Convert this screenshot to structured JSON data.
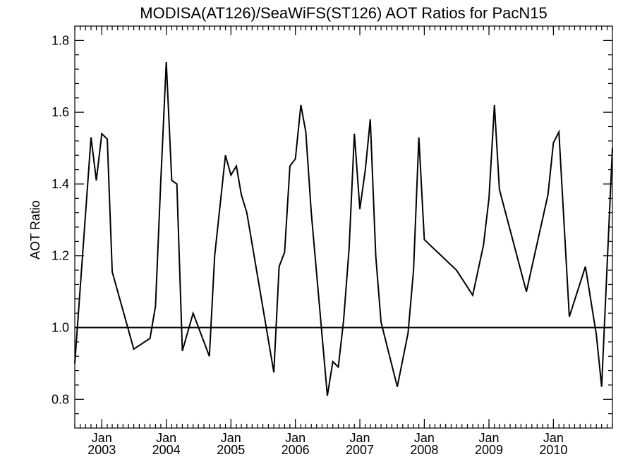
{
  "chart_data": {
    "type": "line",
    "title": "MODISA(AT126)/SeaWiFS(ST126)  AOT Ratios for PacN15",
    "xlabel": "",
    "ylabel": "AOT Ratio",
    "xlim": [
      "2002-08-15",
      "2010-12-15"
    ],
    "ylim": [
      0.72,
      1.84
    ],
    "y_ticks": [
      0.8,
      1.0,
      1.2,
      1.4,
      1.6,
      1.8
    ],
    "y_tick_labels": [
      "0.8",
      "1.0",
      "1.2",
      "1.4",
      "1.6",
      "1.8"
    ],
    "y_minor_ticks": [
      0.76,
      0.84,
      0.88,
      0.92,
      0.96,
      1.04,
      1.08,
      1.12,
      1.16,
      1.24,
      1.28,
      1.32,
      1.36,
      1.44,
      1.48,
      1.52,
      1.56,
      1.64,
      1.68,
      1.72,
      1.76
    ],
    "x_ticks": [
      {
        "date": "2003-01-15",
        "month": "Jan",
        "year": "2003"
      },
      {
        "date": "2004-01-15",
        "month": "Jan",
        "year": "2004"
      },
      {
        "date": "2005-01-15",
        "month": "Jan",
        "year": "2005"
      },
      {
        "date": "2006-01-15",
        "month": "Jan",
        "year": "2006"
      },
      {
        "date": "2007-01-15",
        "month": "Jan",
        "year": "2007"
      },
      {
        "date": "2008-01-15",
        "month": "Jan",
        "year": "2008"
      },
      {
        "date": "2009-01-15",
        "month": "Jan",
        "year": "2009"
      },
      {
        "date": "2010-01-15",
        "month": "Jan",
        "year": "2010"
      }
    ],
    "reference_line": 1.0,
    "grid": false,
    "series": [
      {
        "x": [
          "2002-08-15",
          "2002-11-15",
          "2002-12-15",
          "2003-01-15",
          "2003-02-15",
          "2003-03-15",
          "2003-07-15",
          "2003-10-15",
          "2003-11-15",
          "2003-12-15",
          "2004-01-15",
          "2004-02-15",
          "2004-03-15",
          "2004-04-15",
          "2004-06-15",
          "2004-09-15",
          "2004-10-15",
          "2004-12-15",
          "2005-01-15",
          "2005-02-15",
          "2005-03-15",
          "2005-04-15",
          "2005-09-15",
          "2005-10-15",
          "2005-11-15",
          "2005-12-15",
          "2006-01-15",
          "2006-02-15",
          "2006-03-15",
          "2006-04-15",
          "2006-07-15",
          "2006-08-15",
          "2006-09-15",
          "2006-10-15",
          "2006-11-15",
          "2006-12-15",
          "2007-01-15",
          "2007-02-15",
          "2007-03-15",
          "2007-04-15",
          "2007-05-15",
          "2007-08-15",
          "2007-10-15",
          "2007-11-15",
          "2007-12-15",
          "2008-01-15",
          "2008-07-15",
          "2008-10-15",
          "2008-12-15",
          "2009-01-15",
          "2009-02-15",
          "2009-03-15",
          "2009-08-15",
          "2009-12-15",
          "2010-01-15",
          "2010-02-15",
          "2010-04-15",
          "2010-07-15",
          "2010-09-15",
          "2010-10-15",
          "2010-12-15"
        ],
        "y": [
          0.9,
          1.53,
          1.41,
          1.54,
          1.525,
          1.155,
          0.94,
          0.97,
          1.06,
          1.41,
          1.74,
          1.41,
          1.4,
          0.935,
          1.04,
          0.92,
          1.2,
          1.48,
          1.425,
          1.45,
          1.37,
          1.32,
          0.875,
          1.17,
          1.21,
          1.45,
          1.47,
          1.62,
          1.545,
          1.32,
          0.81,
          0.905,
          0.89,
          1.02,
          1.22,
          1.54,
          1.33,
          1.44,
          1.58,
          1.2,
          1.015,
          0.835,
          0.985,
          1.16,
          1.53,
          1.245,
          1.16,
          1.09,
          1.23,
          1.36,
          1.62,
          1.385,
          1.1,
          1.37,
          1.515,
          1.545,
          1.03,
          1.17,
          0.98,
          0.835,
          1.5
        ]
      }
    ]
  }
}
